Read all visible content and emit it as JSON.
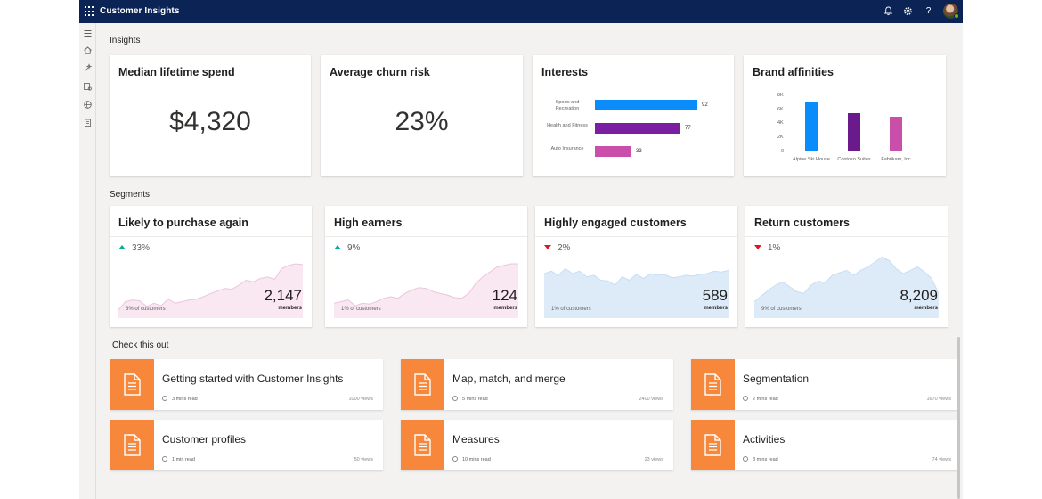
{
  "header": {
    "app_title": "Customer Insights",
    "help_glyph": "?"
  },
  "insights": {
    "section_title": "Insights",
    "lifetime_spend": {
      "title": "Median lifetime spend",
      "value": "$4,320"
    },
    "churn_risk": {
      "title": "Average churn risk",
      "value": "23%"
    },
    "interests": {
      "title": "Interests",
      "items": [
        {
          "label": "Sports and Recreation",
          "value": 92,
          "value_label": "92",
          "color": "#0a8cfa"
        },
        {
          "label": "Health and Fitness",
          "value": 77,
          "value_label": "77",
          "color": "#7a1fa2"
        },
        {
          "label": "Auto Insurance",
          "value": 33,
          "value_label": "33",
          "color": "#c94faa"
        }
      ]
    },
    "brand_affinities": {
      "title": "Brand affinities",
      "y_ticks": [
        "8K",
        "6K",
        "4K",
        "2K",
        "0"
      ],
      "ylim": [
        0,
        8000
      ],
      "bars": [
        {
          "label": "Alpine Ski House",
          "value": 7200,
          "color": "#0a8cfa"
        },
        {
          "label": "Contoso Suites",
          "value": 5500,
          "color": "#6b1a8c"
        },
        {
          "label": "Fabrikam, Inc",
          "value": 5000,
          "color": "#c94faa"
        }
      ]
    }
  },
  "segments": {
    "section_title": "Segments",
    "cards": [
      {
        "title": "Likely to purchase again",
        "trend": "33%",
        "direction": "up",
        "count": "2,147",
        "members_label": "members",
        "pct_text": "3% of customers",
        "fill": "#f9e7f2",
        "stroke": "#eac6dd",
        "values": [
          10,
          20,
          22,
          21,
          14,
          18,
          15,
          23,
          18,
          20,
          22,
          23,
          26,
          30,
          33,
          36,
          35,
          40,
          46,
          44,
          48,
          50,
          47,
          60,
          64,
          66,
          65
        ]
      },
      {
        "title": "High earners",
        "trend": "9%",
        "direction": "up",
        "count": "124",
        "members_label": "members",
        "pct_text": "1% of customers",
        "fill": "#f9e7f2",
        "stroke": "#eac6dd",
        "values": [
          18,
          20,
          22,
          15,
          18,
          17,
          20,
          24,
          26,
          24,
          30,
          34,
          37,
          36,
          32,
          30,
          28,
          25,
          24,
          30,
          42,
          50,
          56,
          62,
          64,
          66,
          66
        ]
      },
      {
        "title": "Highly engaged customers",
        "trend": "2%",
        "direction": "down",
        "count": "589",
        "members_label": "members",
        "pct_text": "1% of customers",
        "fill": "#ddebf9",
        "stroke": "#c7ddf4",
        "values": [
          54,
          57,
          52,
          60,
          54,
          57,
          50,
          52,
          46,
          45,
          40,
          50,
          46,
          53,
          48,
          54,
          52,
          53,
          49,
          50,
          52,
          51,
          53,
          54,
          57,
          56,
          58
        ]
      },
      {
        "title": "Return customers",
        "trend": "1%",
        "direction": "down",
        "count": "8,209",
        "members_label": "members",
        "pct_text": "9% of customers",
        "fill": "#ddebf9",
        "stroke": "#c7ddf4",
        "values": [
          20,
          27,
          34,
          40,
          44,
          38,
          32,
          30,
          40,
          45,
          43,
          52,
          55,
          58,
          52,
          58,
          62,
          68,
          74,
          70,
          60,
          54,
          58,
          62,
          56,
          48,
          30
        ]
      }
    ]
  },
  "check_this_out": {
    "section_title": "Check this out",
    "items": [
      {
        "title": "Getting started with Customer Insights",
        "read_time": "3 mins read",
        "views": "1000 views"
      },
      {
        "title": "Map, match, and merge",
        "read_time": "5 mins read",
        "views": "2400 views"
      },
      {
        "title": "Segmentation",
        "read_time": "2 mins read",
        "views": "1670 views"
      },
      {
        "title": "Customer profiles",
        "read_time": "1 min read",
        "views": "50 views"
      },
      {
        "title": "Measures",
        "read_time": "10 mins read",
        "views": "23 views"
      },
      {
        "title": "Activities",
        "read_time": "3 mins read",
        "views": "74 views"
      }
    ]
  },
  "icons": {
    "header": [
      "waffle-icon",
      "bell-icon",
      "settings-icon",
      "help-icon"
    ],
    "nav": [
      "hamburger-icon",
      "home-icon",
      "ai-sparkle-icon",
      "people-icon",
      "globe-icon",
      "clipboard-icon"
    ],
    "article": "document-icon"
  }
}
